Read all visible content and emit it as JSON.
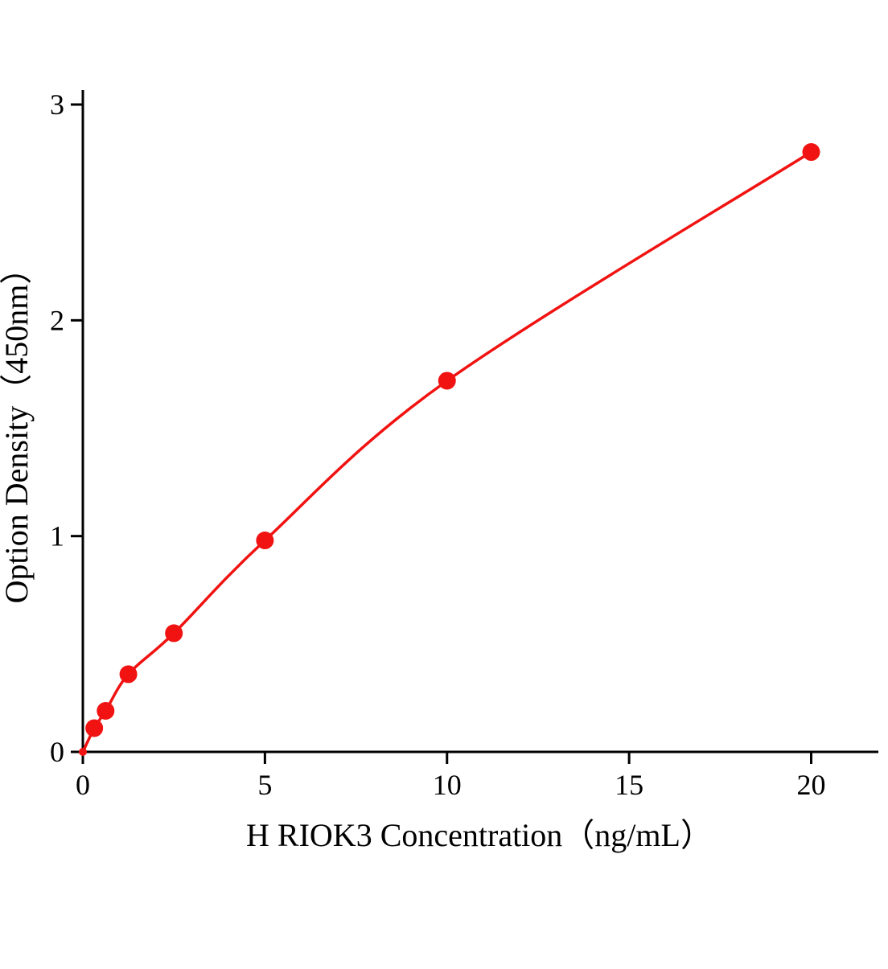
{
  "chart_data": {
    "type": "line",
    "title": "",
    "xlabel": "H RIOK3 Concentration（ng/mL）",
    "ylabel": "Option Density（450nm）",
    "x": [
      0,
      0.313,
      0.625,
      1.25,
      2.5,
      5,
      10,
      20
    ],
    "y": [
      0,
      0.11,
      0.19,
      0.36,
      0.55,
      0.98,
      1.72,
      2.78
    ],
    "xlim": [
      0,
      21.8
    ],
    "ylim": [
      0,
      3
    ],
    "x_ticks": [
      0,
      5,
      10,
      15,
      20
    ],
    "y_ticks": [
      0,
      1,
      2,
      3
    ],
    "line_color": "#f01311",
    "marker": "circle",
    "marker_size": 11,
    "axis_color": "#000000",
    "grid": false,
    "legend": "none"
  }
}
